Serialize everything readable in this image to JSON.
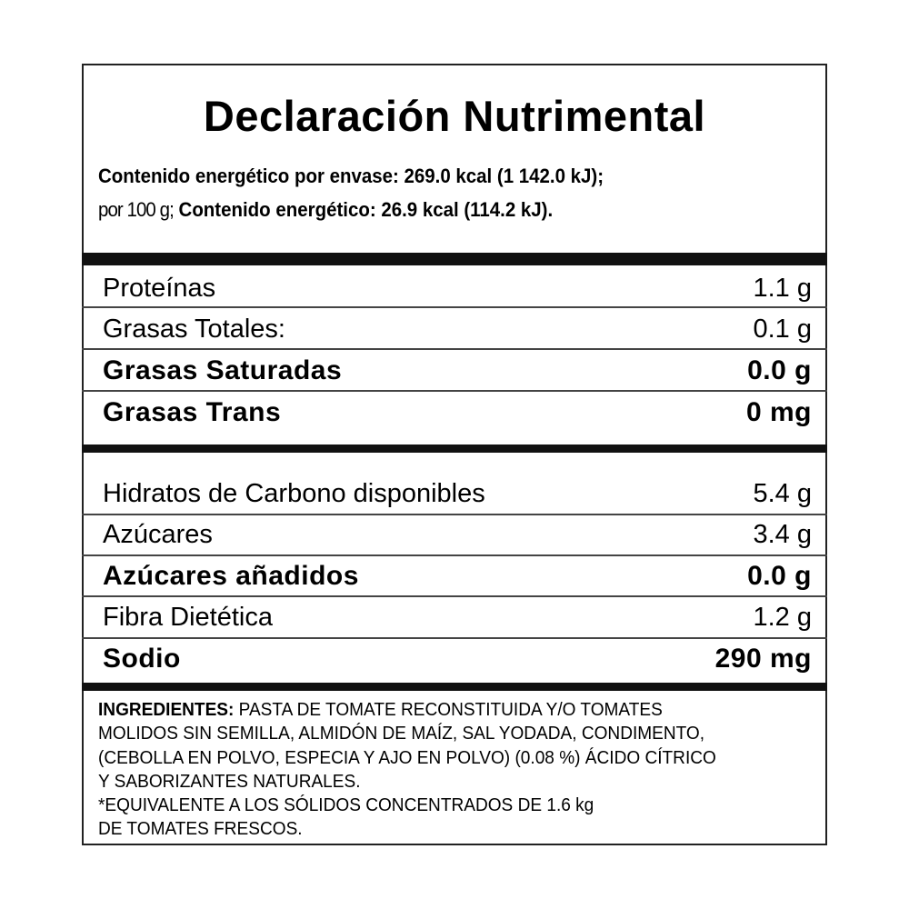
{
  "title": "Declaración Nutrimental",
  "energy": {
    "line1": "Contenido energético por envase: 269.0 kcal (1 142.0 kJ);",
    "line2_prefix": "por 100 g;",
    "line2_bold": "Contenido energético: 26.9 kcal (114.2 kJ)."
  },
  "group1": [
    {
      "label": "Proteínas",
      "value": "1.1 g",
      "bold": false
    },
    {
      "label": "Grasas Totales:",
      "value": "0.1 g",
      "bold": false
    },
    {
      "label": "Grasas Saturadas",
      "value": "0.0 g",
      "bold": true
    },
    {
      "label": "Grasas Trans",
      "value": "0 mg",
      "bold": true
    }
  ],
  "group2": [
    {
      "label": "Hidratos de Carbono disponibles",
      "value": "5.4 g",
      "bold": false
    },
    {
      "label": "Azúcares",
      "value": "3.4 g",
      "bold": false
    },
    {
      "label": "Azúcares añadidos",
      "value": "0.0 g",
      "bold": true
    },
    {
      "label": "Fibra Dietética",
      "value": "1.2 g",
      "bold": false
    },
    {
      "label": "Sodio",
      "value": "290 mg",
      "bold": true
    }
  ],
  "ingredients": {
    "heading": "INGREDIENTES:",
    "line1": " PASTA DE TOMATE RECONSTITUIDA Y/O TOMATES",
    "line2": "MOLIDOS SIN SEMILLA, ALMIDÓN DE MAÍZ, SAL YODADA, CONDIMENTO,",
    "line3": "(CEBOLLA EN POLVO, ESPECIA Y AJO EN POLVO) (0.08 %) ÁCIDO CÍTRICO",
    "line4": "Y SABORIZANTES NATURALES.",
    "line5": "*EQUIVALENTE A LOS SÓLIDOS CONCENTRADOS DE 1.6 kg",
    "line6": "DE TOMATES FRESCOS."
  }
}
